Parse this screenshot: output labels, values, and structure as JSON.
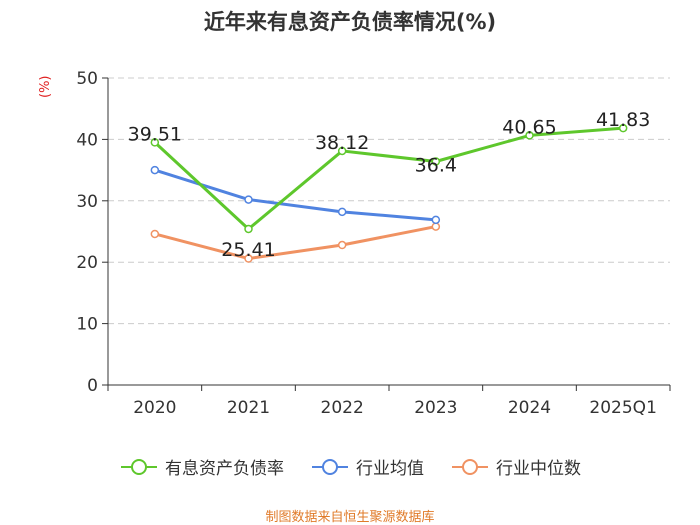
{
  "chart_data": {
    "type": "line",
    "title": "近年来有息资产负债率情况(%)",
    "ylabel": "(%)",
    "xlabel": "",
    "categories": [
      "2020",
      "2021",
      "2022",
      "2023",
      "2024",
      "2025Q1"
    ],
    "ylim": [
      0,
      50
    ],
    "yticks": [
      0,
      10,
      20,
      30,
      40,
      50
    ],
    "grid": true,
    "legend_position": "bottom",
    "series": [
      {
        "name": "有息资产负债率",
        "color": "#5ec72c",
        "values": [
          39.51,
          25.41,
          38.12,
          36.4,
          40.65,
          41.83
        ],
        "show_labels": true
      },
      {
        "name": "行业均值",
        "color": "#5083e0",
        "values": [
          35.0,
          30.2,
          28.2,
          26.9,
          null,
          null
        ],
        "show_labels": false
      },
      {
        "name": "行业中位数",
        "color": "#f09262",
        "values": [
          24.6,
          20.6,
          22.8,
          25.8,
          null,
          null
        ],
        "show_labels": false
      }
    ],
    "source": "制图数据来自恒生聚源数据库"
  }
}
